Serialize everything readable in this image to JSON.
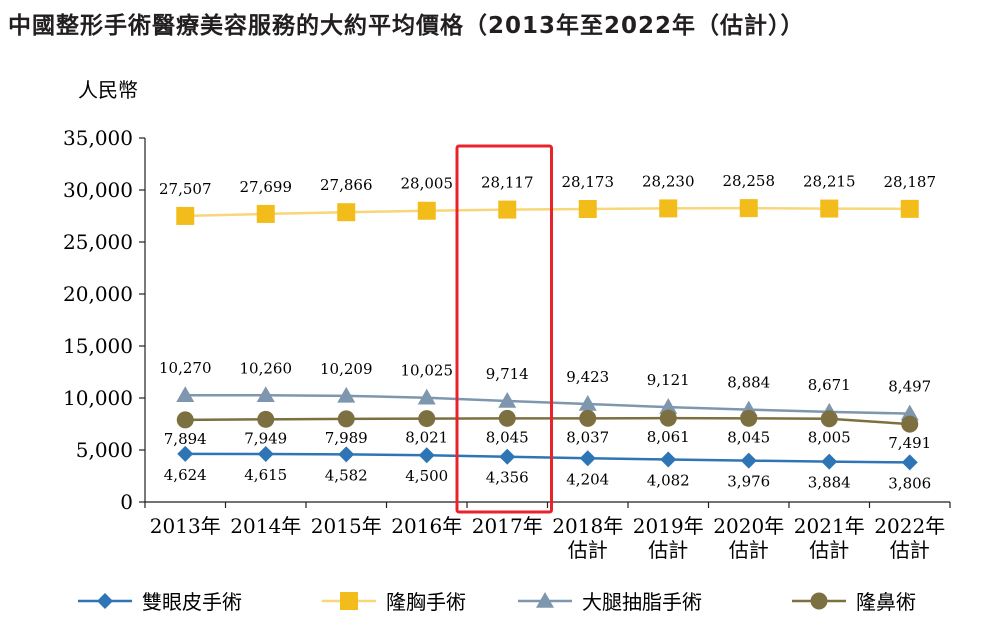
{
  "title": "中國整形手術醫療美容服務的大約平均價格（2013年至2022年（估計））",
  "chart_data": {
    "type": "line",
    "ylabel": "人民幣",
    "ylim": [
      0,
      35000
    ],
    "yticks": [
      "0",
      "5,000",
      "10,000",
      "15,000",
      "20,000",
      "25,000",
      "30,000",
      "35,000"
    ],
    "ytick_values": [
      0,
      5000,
      10000,
      15000,
      20000,
      25000,
      30000,
      35000
    ],
    "categories": [
      [
        "2013年"
      ],
      [
        "2014年"
      ],
      [
        "2015年"
      ],
      [
        "2016年"
      ],
      [
        "2017年"
      ],
      [
        "2018年",
        "估計"
      ],
      [
        "2019年",
        "估計"
      ],
      [
        "2020年",
        "估計"
      ],
      [
        "2021年",
        "估計"
      ],
      [
        "2022年",
        "估計"
      ]
    ],
    "highlight_category_index": 4,
    "highlight_color": "#e8232a",
    "series": [
      {
        "name": "雙眼皮手術",
        "marker": "diamond",
        "color": "#2e75b6",
        "values": [
          4624,
          4615,
          4582,
          4500,
          4356,
          4204,
          4082,
          3976,
          3884,
          3806
        ],
        "labels": [
          "4,624",
          "4,615",
          "4,582",
          "4,500",
          "4,356",
          "4,204",
          "4,082",
          "3,976",
          "3,884",
          "3,806"
        ]
      },
      {
        "name": "隆胸手術",
        "marker": "square",
        "color": "#f2bc1b",
        "line_color": "#f8d67a",
        "values": [
          27507,
          27699,
          27866,
          28005,
          28117,
          28173,
          28230,
          28258,
          28215,
          28187
        ],
        "labels": [
          "27,507",
          "27,699",
          "27,866",
          "28,005",
          "28,117",
          "28,173",
          "28,230",
          "28,258",
          "28,215",
          "28,187"
        ]
      },
      {
        "name": "大腿抽脂手術",
        "marker": "triangle",
        "color": "#7f97ae",
        "values": [
          10270,
          10260,
          10209,
          10025,
          9714,
          9423,
          9121,
          8884,
          8671,
          8497
        ],
        "labels": [
          "10,270",
          "10,260",
          "10,209",
          "10,025",
          "9,714",
          "9,423",
          "9,121",
          "8,884",
          "8,671",
          "8,497"
        ]
      },
      {
        "name": "隆鼻術",
        "marker": "circle",
        "color": "#7d7040",
        "values": [
          7894,
          7949,
          7989,
          8021,
          8045,
          8037,
          8061,
          8045,
          8005,
          7491
        ],
        "labels": [
          "7,894",
          "7,949",
          "7,989",
          "8,021",
          "8,045",
          "8,037",
          "8,061",
          "8,045",
          "8,005",
          "7,491"
        ]
      }
    ],
    "legend": "bottom",
    "grid": false
  }
}
